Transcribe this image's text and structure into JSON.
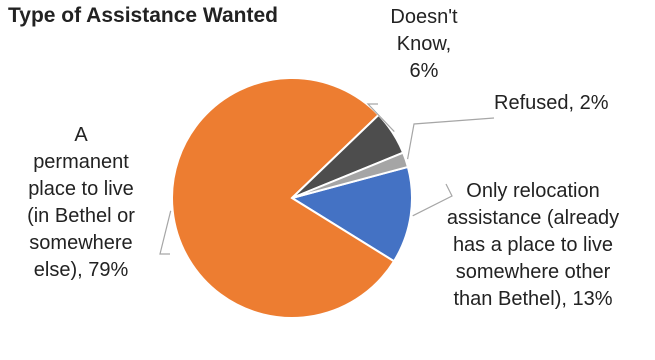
{
  "chart_data": {
    "type": "pie",
    "title": "Type of Assistance Wanted",
    "categories": [
      "Only relocation assistance (already has a place to live somewhere other than Bethel)",
      "A permanent place to live (in Bethel or somewhere else)",
      "Doesn't Know",
      "Refused"
    ],
    "values": [
      13,
      79,
      6,
      2
    ],
    "colors": [
      "#4472c4",
      "#ed7d31",
      "#4d4d4d",
      "#a5a5a5"
    ],
    "data_labels": [
      "Only relocation\nassistance (already\nhas a place to live\nsomewhere other\nthan Bethel), 13%",
      "A\npermanent\nplace to live\n(in Bethel or\nsomewhere\nelse), 79%",
      "Doesn't\nKnow,\n6%",
      "Refused, 2%"
    ],
    "legend": "none"
  }
}
